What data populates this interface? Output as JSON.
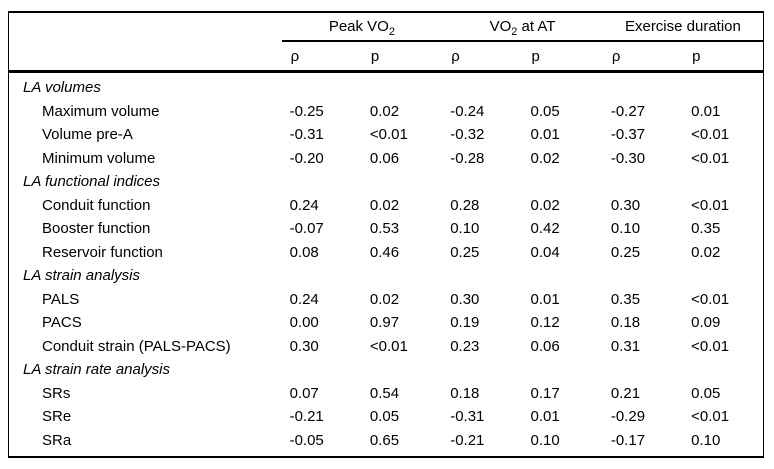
{
  "page": {
    "background": "#ffffff",
    "text_color": "#000000",
    "rule_color": "#000000"
  },
  "table": {
    "groups": [
      {
        "pre": "Peak VO",
        "sub": "2",
        "post": ""
      },
      {
        "pre": "VO",
        "sub": "2",
        "post": " at AT"
      },
      {
        "pre": "Exercise duration",
        "sub": "",
        "post": ""
      }
    ],
    "subheaders": [
      "ρ",
      "p",
      "ρ",
      "p",
      "ρ",
      "p"
    ],
    "rows": [
      {
        "type": "section",
        "label": "LA volumes"
      },
      {
        "type": "item",
        "label": "Maximum volume",
        "values": [
          "-0.25",
          "0.02",
          "-0.24",
          "0.05",
          "-0.27",
          "0.01"
        ]
      },
      {
        "type": "item",
        "label": "Volume pre-A",
        "values": [
          "-0.31",
          "<0.01",
          "-0.32",
          "0.01",
          "-0.37",
          "<0.01"
        ]
      },
      {
        "type": "item",
        "label": "Minimum volume",
        "values": [
          "-0.20",
          "0.06",
          "-0.28",
          "0.02",
          "-0.30",
          "<0.01"
        ]
      },
      {
        "type": "section",
        "label": "LA functional indices"
      },
      {
        "type": "item",
        "label": "Conduit function",
        "values": [
          "0.24",
          "0.02",
          "0.28",
          "0.02",
          "0.30",
          "<0.01"
        ]
      },
      {
        "type": "item",
        "label": "Booster function",
        "values": [
          "-0.07",
          "0.53",
          "0.10",
          "0.42",
          "0.10",
          "0.35"
        ]
      },
      {
        "type": "item",
        "label": "Reservoir function",
        "values": [
          "0.08",
          "0.46",
          "0.25",
          "0.04",
          "0.25",
          "0.02"
        ]
      },
      {
        "type": "section",
        "label": "LA strain analysis"
      },
      {
        "type": "item",
        "label": "PALS",
        "values": [
          "0.24",
          "0.02",
          "0.30",
          "0.01",
          "0.35",
          "<0.01"
        ]
      },
      {
        "type": "item",
        "label": "PACS",
        "values": [
          "0.00",
          "0.97",
          "0.19",
          "0.12",
          "0.18",
          "0.09"
        ]
      },
      {
        "type": "item",
        "label": "Conduit strain (PALS-PACS)",
        "values": [
          "0.30",
          "<0.01",
          "0.23",
          "0.06",
          "0.31",
          "<0.01"
        ]
      },
      {
        "type": "section",
        "label": "LA strain rate analysis"
      },
      {
        "type": "item",
        "label": "SRs",
        "values": [
          "0.07",
          "0.54",
          "0.18",
          "0.17",
          "0.21",
          "0.05"
        ]
      },
      {
        "type": "item",
        "label": "SRe",
        "values": [
          "-0.21",
          "0.05",
          "-0.31",
          "0.01",
          "-0.29",
          "<0.01"
        ]
      },
      {
        "type": "item",
        "label": "SRa",
        "values": [
          "-0.05",
          "0.65",
          "-0.21",
          "0.10",
          "-0.17",
          "0.10"
        ]
      }
    ]
  }
}
